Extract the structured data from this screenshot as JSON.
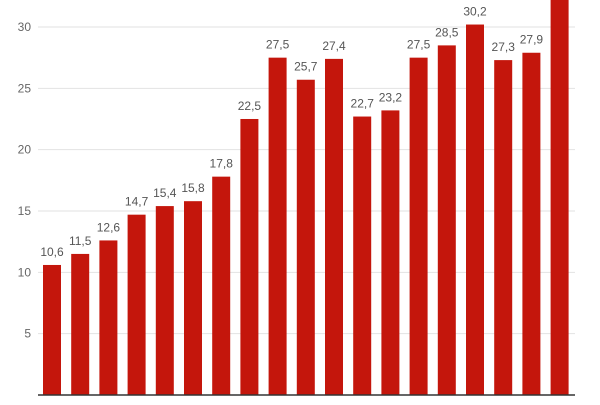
{
  "chart_data": {
    "type": "bar",
    "title": "",
    "xlabel": "",
    "ylabel": "",
    "ylim": [
      0,
      32.2
    ],
    "yticks": [
      5,
      10,
      15,
      20,
      25,
      30
    ],
    "grid": true,
    "legend": "none",
    "bar_color": "#c4160c",
    "grid_color": "#e2e2e2",
    "tick_label_color": "#666666",
    "value_label_color": "#555555",
    "values": [
      10.6,
      11.5,
      12.6,
      14.7,
      15.4,
      15.8,
      17.8,
      22.5,
      27.5,
      25.7,
      27.4,
      22.7,
      23.2,
      27.5,
      28.5,
      30.2,
      27.3,
      27.9,
      32.2
    ],
    "data_labels": [
      "10,6",
      "11,5",
      "12,6",
      "14,7",
      "15,4",
      "15,8",
      "17,8",
      "22,5",
      "27,5",
      "25,7",
      "27,4",
      "22,7",
      "23,2",
      "27,5",
      "28,5",
      "30,2",
      "27,3",
      "27,9",
      ""
    ]
  }
}
